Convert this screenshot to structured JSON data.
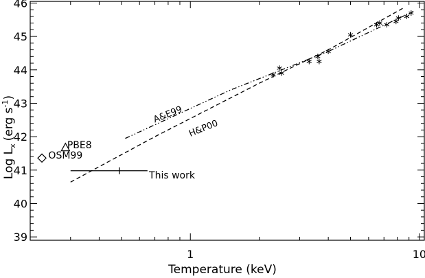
{
  "chart_data": {
    "type": "scatter",
    "xlabel": "Temperature (keV)",
    "ylabel_main": "Log L",
    "ylabel_sub": "x",
    "ylabel_unit": "(erg s",
    "ylabel_sup": "-1",
    "ylabel_close": ")",
    "xscale": "log",
    "xlim": [
      0.2,
      10.5
    ],
    "ylim": [
      38.9,
      46.05
    ],
    "x_ticks": [
      {
        "value": 1,
        "label": "1"
      },
      {
        "value": 10,
        "label": "10"
      }
    ],
    "y_ticks": [
      {
        "value": 39,
        "label": "39"
      },
      {
        "value": 40,
        "label": "40"
      },
      {
        "value": 41,
        "label": "41"
      },
      {
        "value": 42,
        "label": "42"
      },
      {
        "value": 43,
        "label": "43"
      },
      {
        "value": 44,
        "label": "44"
      },
      {
        "value": 45,
        "label": "45"
      },
      {
        "value": 46,
        "label": "46"
      }
    ],
    "series": [
      {
        "name": "A&E99",
        "style": "dash-dot-dot",
        "points": [
          [
            0.52,
            41.95
          ],
          [
            1.5,
            43.4
          ],
          [
            4.0,
            44.55
          ],
          [
            9.4,
            45.75
          ]
        ]
      },
      {
        "name": "H&P00",
        "style": "dashed",
        "points": [
          [
            0.3,
            40.64
          ],
          [
            0.7,
            42.0
          ],
          [
            2.0,
            43.6
          ],
          [
            4.0,
            44.6
          ],
          [
            8.5,
            45.85
          ]
        ]
      }
    ],
    "clusters": [
      [
        2.3,
        43.85
      ],
      [
        2.45,
        44.05
      ],
      [
        2.5,
        43.9
      ],
      [
        3.3,
        44.25
      ],
      [
        3.6,
        44.4
      ],
      [
        3.65,
        44.25
      ],
      [
        4.0,
        44.55
      ],
      [
        5.0,
        45.05
      ],
      [
        6.5,
        45.35
      ],
      [
        6.7,
        45.4
      ],
      [
        7.2,
        45.35
      ],
      [
        7.9,
        45.45
      ],
      [
        8.1,
        45.55
      ],
      [
        8.8,
        45.6
      ],
      [
        9.2,
        45.7
      ]
    ],
    "annotations": [
      {
        "text": "A&E99",
        "x": 0.7,
        "y": 42.42,
        "rotate": -22
      },
      {
        "text": "H&P00",
        "x": 1.0,
        "y": 42.0,
        "rotate": -22
      },
      {
        "text": "PBE8",
        "x": 0.29,
        "y": 41.65
      },
      {
        "text": "OSM99",
        "x": 0.24,
        "y": 41.35
      },
      {
        "text": "This work",
        "x": 0.66,
        "y": 40.75
      }
    ],
    "triangle_point": [
      0.285,
      41.68
    ],
    "diamond_point": [
      0.225,
      41.36
    ],
    "this_work": {
      "x_min": 0.3,
      "x_max": 0.65,
      "x_center": 0.49,
      "y": 40.98
    }
  }
}
